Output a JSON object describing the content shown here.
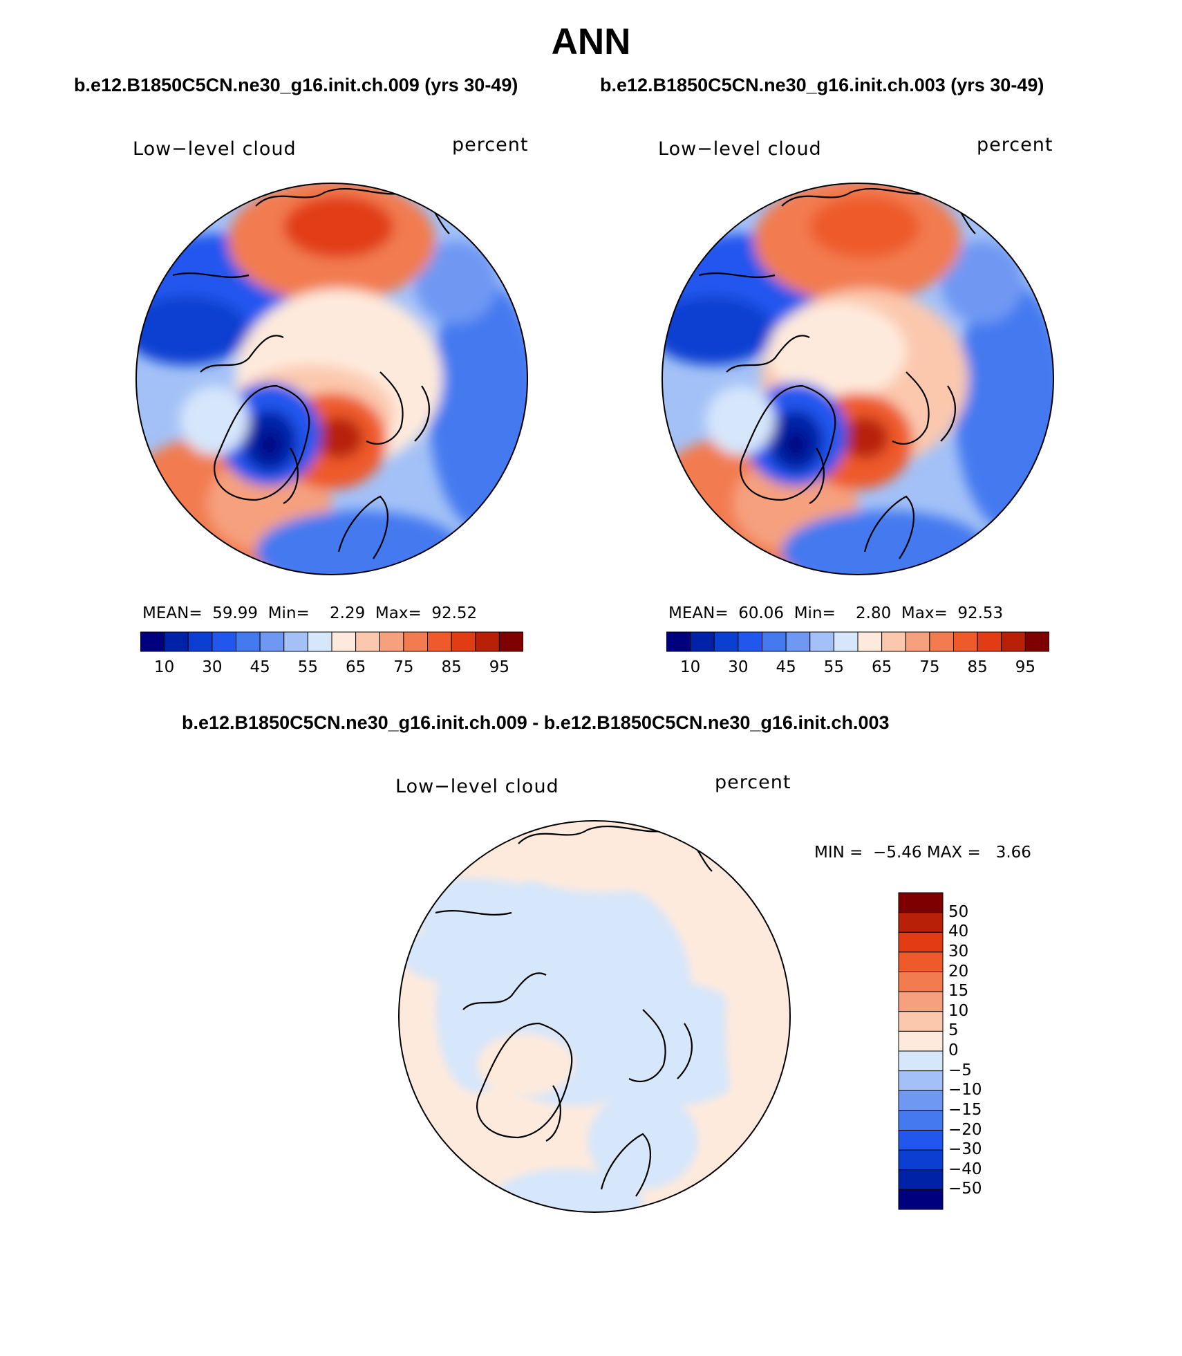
{
  "title": "ANN",
  "case_titles": {
    "left": "b.e12.B1850C5CN.ne30_g16.init.ch.009 (yrs 30-49)",
    "right": "b.e12.B1850C5CN.ne30_g16.init.ch.003 (yrs 30-49)",
    "diff": "b.e12.B1850C5CN.ne30_g16.init.ch.009 - b.e12.B1850C5CN.ne30_g16.init.ch.003"
  },
  "panels": [
    {
      "id": "case1",
      "variable": "Low−level cloud",
      "units": "percent",
      "stats": {
        "mean_label": "MEAN=",
        "mean": "59.99",
        "min_label": "Min=",
        "min": "2.29",
        "max_label": "Max=",
        "max": "92.52"
      }
    },
    {
      "id": "case2",
      "variable": "Low−level cloud",
      "units": "percent",
      "stats": {
        "mean_label": "MEAN=",
        "mean": "60.06",
        "min_label": "Min=",
        "min": "2.80",
        "max_label": "Max=",
        "max": "92.53"
      }
    },
    {
      "id": "diff",
      "variable": "Low−level cloud",
      "units": "percent",
      "stats": {
        "min_label": "MIN =",
        "min": "−5.46",
        "max_label": "MAX =",
        "max": "3.66"
      }
    }
  ],
  "colorbar_main": {
    "colors": [
      "#00007f",
      "#0022a6",
      "#0b3fd1",
      "#2257ee",
      "#4479f0",
      "#6f98f3",
      "#a3c1f7",
      "#d6e6fb",
      "#feeadc",
      "#fbc8ae",
      "#f6a07e",
      "#f27b50",
      "#ee5a2a",
      "#e13c14",
      "#b82108",
      "#7f0000"
    ],
    "tick_labels": [
      "10",
      "30",
      "45",
      "55",
      "65",
      "75",
      "85",
      "95"
    ]
  },
  "colorbar_diff": {
    "colors_top_to_bottom": [
      "#7f0000",
      "#b82108",
      "#e13c14",
      "#ee5a2a",
      "#f27b50",
      "#f6a07e",
      "#fbc8ae",
      "#feeadc",
      "#d6e6fb",
      "#a3c1f7",
      "#6f98f3",
      "#4479f0",
      "#2257ee",
      "#0b3fd1",
      "#0022a6",
      "#00007f"
    ],
    "tick_labels": [
      "50",
      "40",
      "30",
      "20",
      "15",
      "10",
      "5",
      "0",
      "−5",
      "−10",
      "−15",
      "−20",
      "−30",
      "−40",
      "−50"
    ]
  }
}
